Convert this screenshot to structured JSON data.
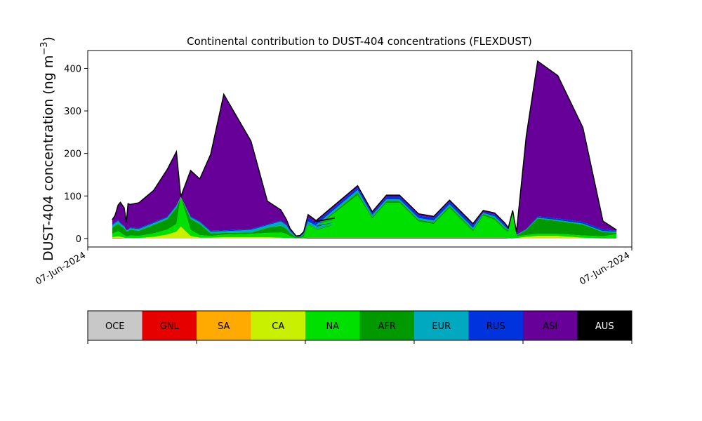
{
  "chart_data": {
    "type": "area",
    "stacked": true,
    "title": "Continental contribution to DUST-404 concentrations (FLEXDUST)",
    "ylabel_main": "DUST-404 concentration (ng m",
    "ylabel_sup": "−3",
    "ylabel_close": ")",
    "xlabel": "",
    "ylim": [
      -20,
      442
    ],
    "yticks": [
      0,
      100,
      200,
      300,
      400
    ],
    "xlim": [
      0,
      100
    ],
    "xtick_labels": [
      "07-Jun-2024",
      "07-Jun-2024"
    ],
    "grid": false,
    "legend_placement": "bottom colorbar",
    "x": [
      4.5,
      5.0,
      5.6,
      6.0,
      6.7,
      7.1,
      7.4,
      7.8,
      9.4,
      12.1,
      14.6,
      16.3,
      17.1,
      18.9,
      20.6,
      22.6,
      25.0,
      30.0,
      33.0,
      35.5,
      36.5,
      37.2,
      38.3,
      39.0,
      39.7,
      40.5,
      42.2,
      45.4,
      41.8,
      49.6,
      52.3,
      54.9,
      57.3,
      60.8,
      63.6,
      66.5,
      70.8,
      72.7,
      74.8,
      76.7,
      77.3,
      78.1,
      78.8,
      80.6,
      82.7,
      86.4,
      91.0,
      94.7,
      97.2
    ],
    "series": [
      {
        "name": "OCE",
        "color": "#c8c8c8",
        "values": [
          0,
          0,
          0,
          0,
          0,
          0,
          0,
          0,
          0,
          0,
          0,
          0,
          0,
          0,
          0,
          0,
          0,
          0,
          0,
          0,
          0,
          0,
          0,
          0,
          0,
          0,
          0,
          0,
          0,
          0,
          0,
          0,
          0,
          0,
          0,
          0,
          0,
          0,
          0,
          0,
          0,
          0,
          0,
          0,
          0,
          0,
          0,
          0,
          0
        ]
      },
      {
        "name": "GNL",
        "color": "#e60000",
        "values": [
          1,
          1,
          1,
          1,
          0,
          0,
          0,
          0,
          0,
          0,
          0,
          0,
          0,
          0,
          0,
          0,
          0,
          0,
          0,
          0,
          0,
          0,
          0,
          0,
          0,
          2,
          2,
          2,
          2,
          2,
          2,
          2,
          2,
          2,
          2,
          2,
          2,
          2,
          2,
          2,
          0,
          0,
          0,
          0,
          0,
          0,
          0,
          0,
          0
        ]
      },
      {
        "name": "SA",
        "color": "#ffaa00",
        "values": [
          0,
          0,
          0,
          0,
          0,
          0,
          0,
          0,
          0,
          0,
          0,
          0,
          0,
          0,
          0,
          0,
          0,
          0,
          0,
          0,
          0,
          0,
          0,
          0,
          0,
          0,
          0,
          0,
          0,
          0,
          0,
          0,
          0,
          0,
          0,
          0,
          0,
          0,
          0,
          0,
          0,
          0,
          0,
          0,
          0,
          0,
          0,
          0,
          0
        ]
      },
      {
        "name": "CA",
        "color": "#c8f000",
        "values": [
          2,
          3,
          4,
          3,
          2,
          1,
          1,
          1,
          1,
          4,
          9,
          16,
          28,
          6,
          2,
          2,
          3,
          3,
          3,
          2,
          1,
          1,
          0,
          0,
          0,
          0,
          0,
          0,
          0,
          0,
          0,
          0,
          0,
          0,
          0,
          0,
          0,
          0,
          0,
          0,
          0,
          0,
          1,
          4,
          6,
          6,
          2,
          0,
          0
        ]
      },
      {
        "name": "NA",
        "color": "#00e000",
        "values": [
          8,
          10,
          12,
          10,
          6,
          4,
          4,
          6,
          5,
          8,
          12,
          18,
          70,
          14,
          6,
          4,
          6,
          8,
          10,
          12,
          10,
          4,
          1,
          1,
          4,
          30,
          18,
          30,
          22,
          100,
          45,
          82,
          82,
          38,
          32,
          70,
          15,
          52,
          42,
          18,
          15,
          60,
          4,
          4,
          5,
          5,
          5,
          5,
          10
        ]
      },
      {
        "name": "AFR",
        "color": "#009900",
        "values": [
          14,
          16,
          18,
          16,
          16,
          12,
          12,
          14,
          12,
          20,
          24,
          38,
          0,
          26,
          26,
          6,
          4,
          3,
          12,
          16,
          12,
          8,
          2,
          2,
          6,
          2,
          2,
          2,
          2,
          6,
          4,
          4,
          4,
          4,
          4,
          4,
          4,
          4,
          4,
          4,
          4,
          2,
          2,
          12,
          36,
          30,
          26,
          10,
          4
        ]
      },
      {
        "name": "EUR",
        "color": "#00a8c0",
        "values": [
          6,
          6,
          6,
          5,
          4,
          2,
          3,
          3,
          4,
          4,
          4,
          4,
          0,
          4,
          4,
          4,
          4,
          6,
          6,
          10,
          8,
          4,
          1,
          1,
          2,
          6,
          6,
          4,
          4,
          6,
          4,
          4,
          4,
          4,
          4,
          4,
          4,
          2,
          4,
          4,
          2,
          1,
          1,
          1,
          2,
          2,
          2,
          2,
          2
        ]
      },
      {
        "name": "RUS",
        "color": "#0033dd",
        "values": [
          2,
          2,
          2,
          2,
          2,
          1,
          2,
          2,
          2,
          2,
          2,
          2,
          0,
          2,
          2,
          2,
          2,
          2,
          2,
          2,
          2,
          2,
          1,
          1,
          2,
          8,
          8,
          6,
          6,
          6,
          4,
          6,
          6,
          6,
          6,
          6,
          6,
          2,
          4,
          4,
          2,
          1,
          1,
          1,
          3,
          4,
          4,
          4,
          2
        ]
      },
      {
        "name": "ASI",
        "color": "#660099",
        "values": [
          11,
          16,
          36,
          48,
          42,
          18,
          60,
          54,
          60,
          75,
          111,
          126,
          0,
          108,
          100,
          180,
          320,
          207,
          55,
          25,
          12,
          4,
          1,
          2,
          2,
          8,
          4,
          4,
          4,
          4,
          4,
          4,
          4,
          4,
          4,
          4,
          4,
          4,
          4,
          4,
          2,
          2,
          6,
          218,
          365,
          336,
          222,
          20,
          2
        ]
      },
      {
        "name": "AUS",
        "color": "#000000",
        "values": [
          0,
          0,
          0,
          0,
          0,
          0,
          0,
          0,
          0,
          0,
          0,
          0,
          0,
          0,
          0,
          0,
          0,
          0,
          0,
          0,
          0,
          0,
          0,
          0,
          0,
          0,
          0,
          0,
          0,
          0,
          0,
          0,
          0,
          0,
          0,
          0,
          0,
          0,
          0,
          0,
          0,
          0,
          0,
          0,
          0,
          0,
          0,
          0,
          0
        ]
      }
    ],
    "legend": [
      {
        "name": "OCE",
        "color": "#c8c8c8",
        "text_color": "#000000"
      },
      {
        "name": "GNL",
        "color": "#e60000",
        "text_color": "#000000"
      },
      {
        "name": "SA",
        "color": "#ffaa00",
        "text_color": "#000000"
      },
      {
        "name": "CA",
        "color": "#c8f000",
        "text_color": "#000000"
      },
      {
        "name": "NA",
        "color": "#00e000",
        "text_color": "#000000"
      },
      {
        "name": "AFR",
        "color": "#009900",
        "text_color": "#000000"
      },
      {
        "name": "EUR",
        "color": "#00a8c0",
        "text_color": "#000000"
      },
      {
        "name": "RUS",
        "color": "#0033dd",
        "text_color": "#000000"
      },
      {
        "name": "ASI",
        "color": "#660099",
        "text_color": "#000000"
      },
      {
        "name": "AUS",
        "color": "#000000",
        "text_color": "#ffffff"
      }
    ]
  }
}
